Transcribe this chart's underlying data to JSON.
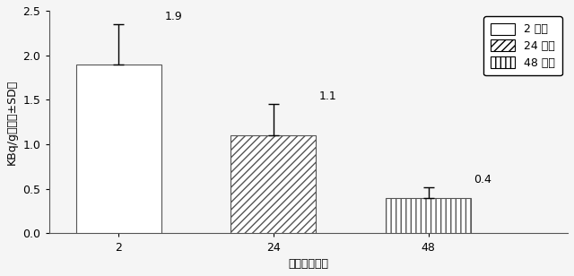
{
  "categories": [
    "2",
    "24",
    "48"
  ],
  "values": [
    1.9,
    1.1,
    0.4
  ],
  "errors": [
    0.45,
    0.35,
    0.12
  ],
  "hatch_patterns": [
    "",
    "////",
    "|||"
  ],
  "bar_facecolors": [
    "white",
    "white",
    "white"
  ],
  "bar_edgecolors": [
    "#555555",
    "#555555",
    "#555555"
  ],
  "value_labels": [
    "1.9",
    "1.1",
    "0.4"
  ],
  "ylabel": "KBq/g（平均±SD）",
  "xlabel": "時間（時間）",
  "ylim": [
    0.0,
    2.5
  ],
  "yticks": [
    0.0,
    0.5,
    1.0,
    1.5,
    2.0,
    2.5
  ],
  "legend_labels": [
    "2 時間",
    "24 時間",
    "48 時間"
  ],
  "legend_hatches": [
    "",
    "////",
    "|||"
  ],
  "bar_width": 0.55,
  "bar_positions": [
    0,
    1,
    2
  ],
  "xtick_labels": [
    "2",
    "24",
    "48"
  ],
  "label_fontsize": 9,
  "tick_fontsize": 9,
  "legend_fontsize": 9,
  "value_label_fontsize": 9,
  "background_color": "#f5f5f5"
}
